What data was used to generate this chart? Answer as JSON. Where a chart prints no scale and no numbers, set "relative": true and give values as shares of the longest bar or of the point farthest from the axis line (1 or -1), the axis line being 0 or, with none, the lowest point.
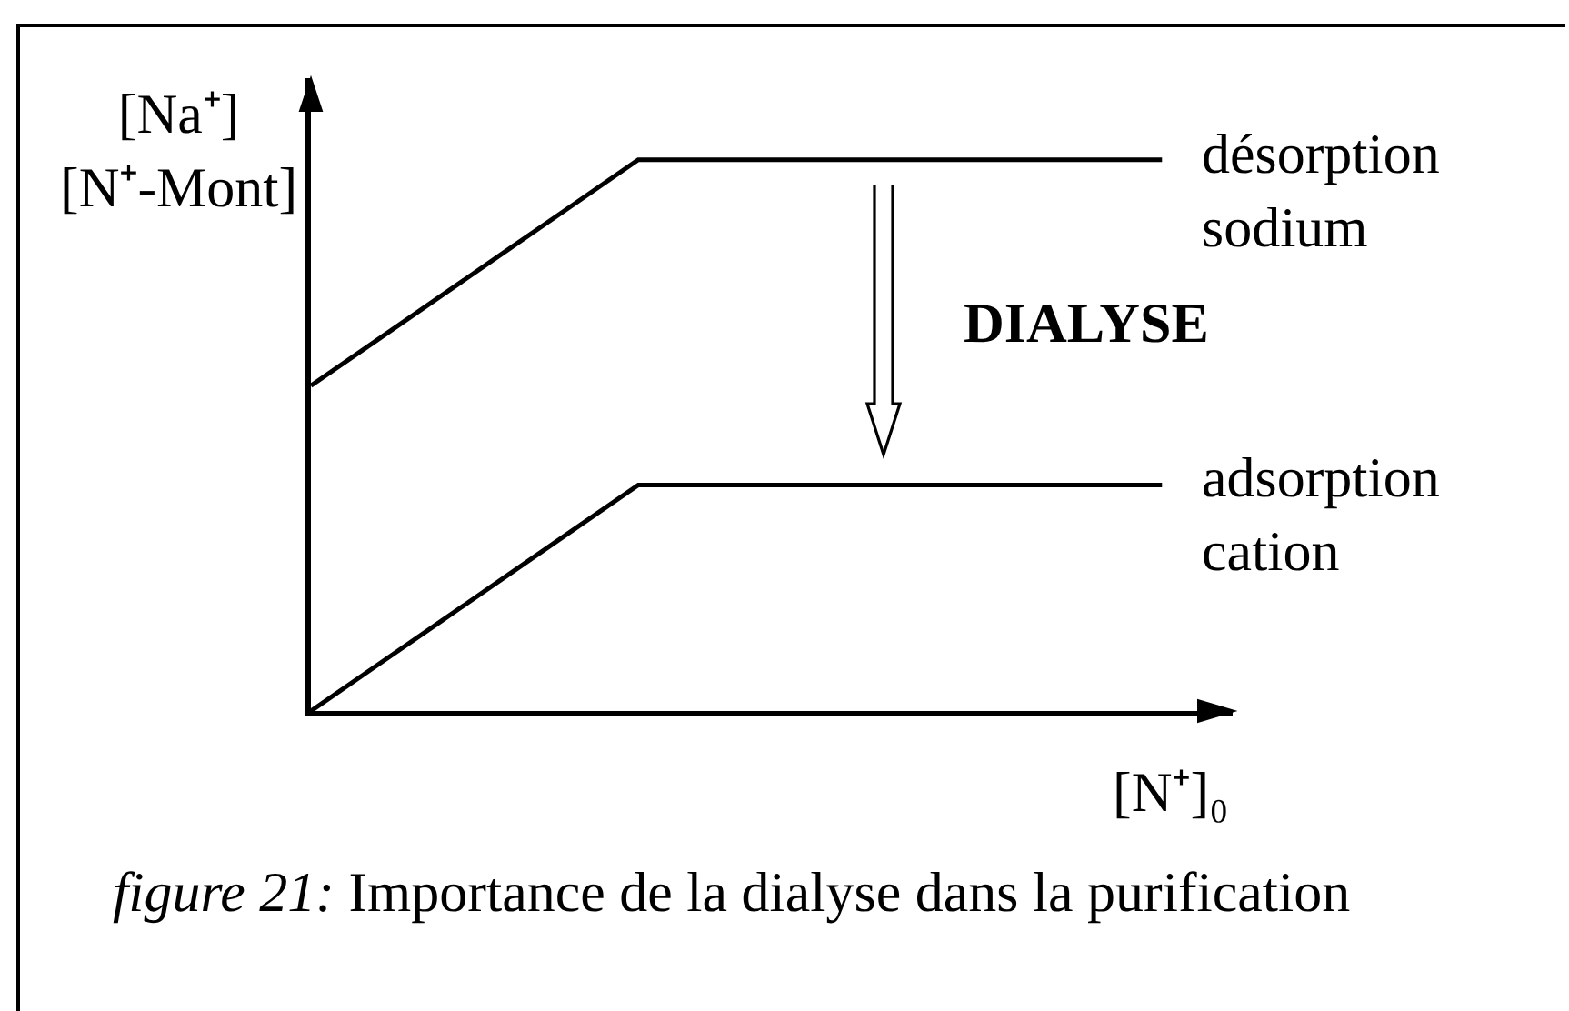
{
  "chart_data": {
    "type": "line",
    "relative": true,
    "categories": [
      null,
      null,
      null,
      null,
      null,
      null,
      null,
      null,
      null,
      null,
      null,
      null,
      null,
      null
    ],
    "series": [
      {
        "name": "désorption sodium",
        "color": "#000000",
        "values": [
          0.59,
          0.672,
          0.754,
          0.836,
          0.918,
          1,
          1,
          1,
          1,
          1,
          1,
          1,
          1,
          1
        ]
      },
      {
        "name": "adsorption cation",
        "color": "#000000",
        "values": [
          0,
          0.082,
          0.164,
          0.246,
          0.328,
          0.41,
          0.41,
          0.41,
          0.41,
          0.41,
          0.41,
          0.41,
          0.41,
          0.41
        ]
      }
    ],
    "xlabel": "[N⁺]₀",
    "ylabel": "[Na⁺] [N⁺-Mont]",
    "annotations": [
      "DIALYSE",
      "figure 21: Importance de la dialyse dans la purification"
    ],
    "legend": false,
    "grid": false,
    "marker": "none",
    "line_style": "solid"
  }
}
